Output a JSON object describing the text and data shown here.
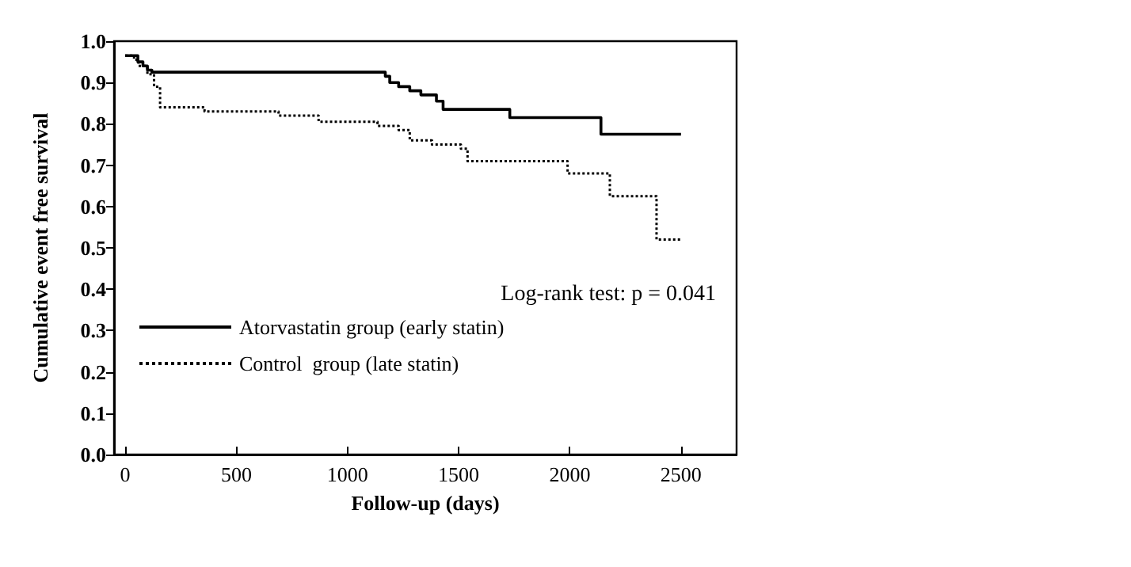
{
  "chart_data": {
    "type": "step",
    "xlabel": "Follow-up (days)",
    "ylabel": "Cumulative event free survival",
    "annotations": [
      "Log-rank test: p = 0.041"
    ],
    "xlim": [
      -50,
      2750
    ],
    "xticks": [
      0,
      500,
      1000,
      1500,
      2000,
      2500
    ],
    "ylim": [
      0,
      1
    ],
    "yticks": [
      {
        "value": 0,
        "label": "0.0"
      },
      {
        "value": 0.1,
        "label": "0.1"
      },
      {
        "value": 0.2,
        "label": "0.2"
      },
      {
        "value": 0.3,
        "label": "0.3"
      },
      {
        "value": 0.4,
        "label": "0.4"
      },
      {
        "value": 0.5,
        "label": "0.5"
      },
      {
        "value": 0.6,
        "label": "0.6"
      },
      {
        "value": 0.7,
        "label": "0.7"
      },
      {
        "value": 0.8,
        "label": "0.8"
      },
      {
        "value": 0.9,
        "label": "0.9"
      },
      {
        "value": 1,
        "label": "1.0"
      }
    ],
    "grid": false,
    "legend": "bottom left",
    "marker": "none",
    "series": [
      {
        "name": "Atorvastatin group (early statin)",
        "color": "#000000",
        "line_style": "solid",
        "x": [
          0,
          57,
          80,
          100,
          120,
          1170,
          1190,
          1230,
          1280,
          1330,
          1400,
          1430,
          1730,
          2140,
          2500
        ],
        "values": [
          0.965,
          0.95,
          0.94,
          0.93,
          0.925,
          0.915,
          0.9,
          0.89,
          0.88,
          0.87,
          0.855,
          0.835,
          0.815,
          0.775,
          0.775
        ]
      },
      {
        "name": "Control  group (late statin)",
        "color": "#000000",
        "line_style": "dotted",
        "x": [
          0,
          40,
          60,
          100,
          130,
          157,
          357,
          690,
          870,
          1135,
          1230,
          1280,
          1380,
          1510,
          1540,
          1990,
          2180,
          2390,
          2500
        ],
        "values": [
          0.965,
          0.955,
          0.94,
          0.92,
          0.89,
          0.84,
          0.83,
          0.82,
          0.805,
          0.795,
          0.785,
          0.76,
          0.75,
          0.74,
          0.71,
          0.68,
          0.625,
          0.52,
          0.52
        ]
      }
    ]
  }
}
